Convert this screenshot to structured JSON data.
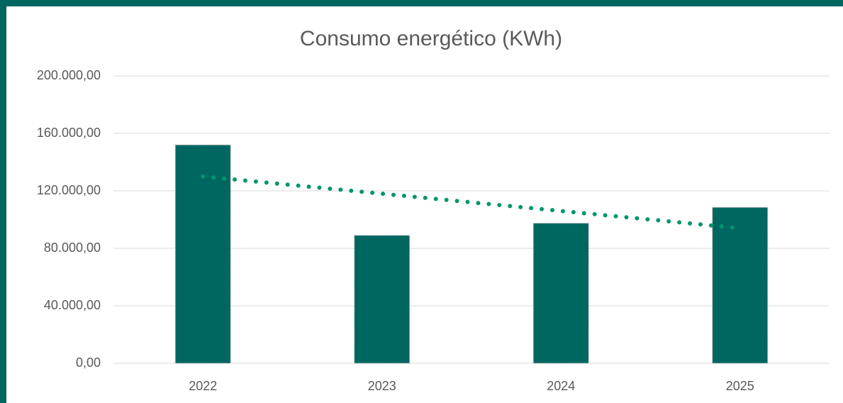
{
  "chart_data": {
    "type": "bar",
    "title": "Consumo energético (KWh)",
    "categories": [
      "2022",
      "2023",
      "2024",
      "2025"
    ],
    "values": [
      152000,
      89000,
      97500,
      108500
    ],
    "color": "#006660",
    "trend": {
      "values": [
        130000,
        118000,
        106000,
        94000
      ],
      "color": "#00956e"
    },
    "ylim": [
      0,
      200000
    ],
    "yticks": [
      {
        "value": 0,
        "label": "0,00"
      },
      {
        "value": 40000,
        "label": "40.000,00"
      },
      {
        "value": 80000,
        "label": "80.000,00"
      },
      {
        "value": 120000,
        "label": "120.000,00"
      },
      {
        "value": 160000,
        "label": "160.000,00"
      },
      {
        "value": 200000,
        "label": "200.000,00"
      }
    ],
    "grid": true
  }
}
